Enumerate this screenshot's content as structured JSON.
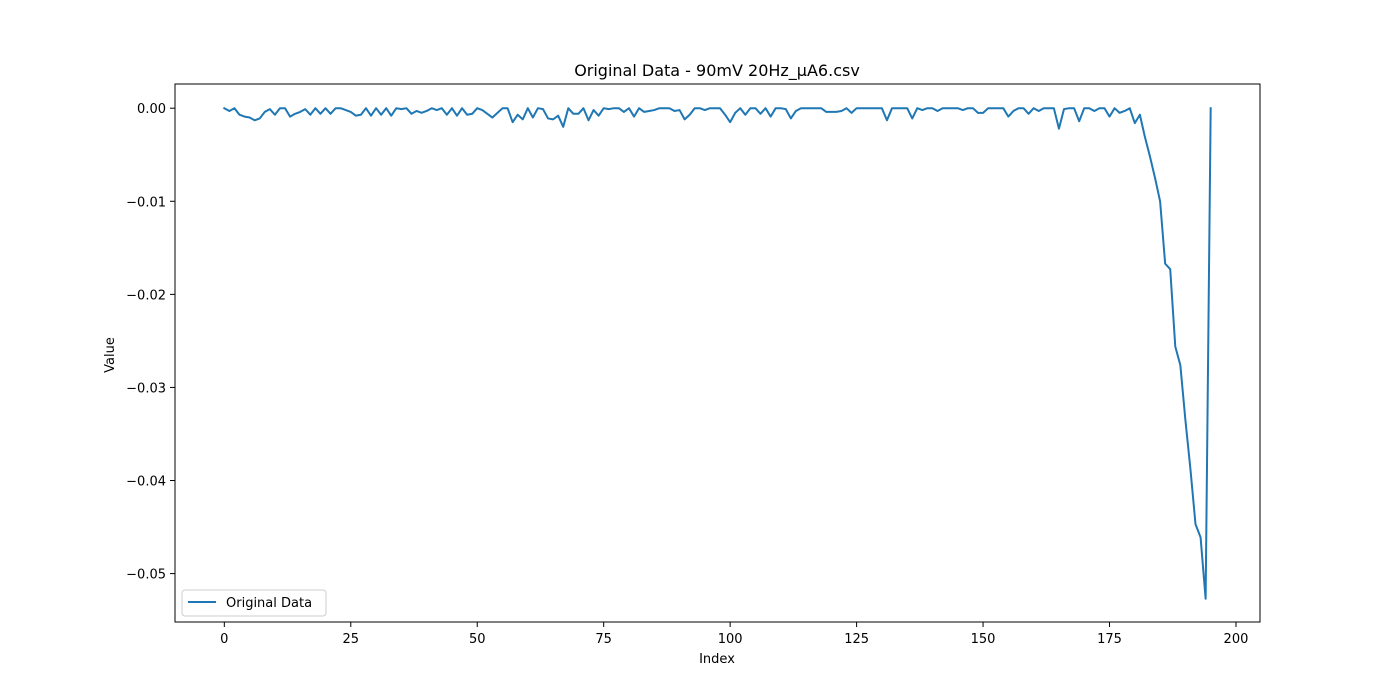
{
  "chart_data": {
    "type": "line",
    "title": "Original Data - 90mV 20Hz_µA6.csv",
    "xlabel": "Index",
    "ylabel": "Value",
    "xlim": [
      -9.75,
      204.75
    ],
    "ylim": [
      -0.0552,
      0.0026
    ],
    "xticks": [
      0,
      25,
      50,
      75,
      100,
      125,
      150,
      175,
      200
    ],
    "xtick_labels": [
      "0",
      "25",
      "50",
      "75",
      "100",
      "125",
      "150",
      "175",
      "200"
    ],
    "yticks": [
      0.0,
      -0.01,
      -0.02,
      -0.03,
      -0.04,
      -0.05
    ],
    "ytick_labels": [
      "0.00",
      "−0.01",
      "−0.02",
      "−0.03",
      "−0.04",
      "−0.05"
    ],
    "grid": false,
    "legend_position": "lower left",
    "series": [
      {
        "name": "Original Data",
        "color": "#1f77b4",
        "x": [
          0,
          1,
          2,
          3,
          4,
          5,
          6,
          7,
          8,
          9,
          10,
          11,
          12,
          13,
          14,
          15,
          16,
          17,
          18,
          19,
          20,
          21,
          22,
          23,
          24,
          25,
          26,
          27,
          28,
          29,
          30,
          31,
          32,
          33,
          34,
          35,
          36,
          37,
          38,
          39,
          40,
          41,
          42,
          43,
          44,
          45,
          46,
          47,
          48,
          49,
          50,
          51,
          52,
          53,
          54,
          55,
          56,
          57,
          58,
          59,
          60,
          61,
          62,
          63,
          64,
          65,
          66,
          67,
          68,
          69,
          70,
          71,
          72,
          73,
          74,
          75,
          76,
          77,
          78,
          79,
          80,
          81,
          82,
          83,
          84,
          85,
          86,
          87,
          88,
          89,
          90,
          91,
          92,
          93,
          94,
          95,
          96,
          97,
          98,
          99,
          100,
          101,
          102,
          103,
          104,
          105,
          106,
          107,
          108,
          109,
          110,
          111,
          112,
          113,
          114,
          115,
          116,
          117,
          118,
          119,
          120,
          121,
          122,
          123,
          124,
          125,
          126,
          127,
          128,
          129,
          130,
          131,
          132,
          133,
          134,
          135,
          136,
          137,
          138,
          139,
          140,
          141,
          142,
          143,
          144,
          145,
          146,
          147,
          148,
          149,
          150,
          151,
          152,
          153,
          154,
          155,
          156,
          157,
          158,
          159,
          160,
          161,
          162,
          163,
          164,
          165,
          166,
          167,
          168,
          169,
          170,
          171,
          172,
          173,
          174,
          175,
          176,
          177,
          178,
          179,
          180,
          181,
          182,
          183,
          184,
          185,
          186,
          187,
          188,
          189,
          190,
          191,
          192,
          193,
          194,
          195
        ],
        "y": [
          0.0,
          -0.0003,
          0.0,
          -0.0007,
          -0.0009,
          -0.001,
          -0.0013,
          -0.0011,
          -0.0004,
          -0.0001,
          -0.0007,
          0.0,
          0.0,
          -0.0009,
          -0.0006,
          -0.0004,
          -0.0001,
          -0.0007,
          0.0,
          -0.0006,
          0.0,
          -0.0006,
          0.0,
          0.0,
          -0.0002,
          -0.0004,
          -0.0008,
          -0.0007,
          0.0,
          -0.0008,
          0.0,
          -0.0007,
          0.0,
          -0.0008,
          0.0,
          -0.0001,
          0.0,
          -0.0006,
          -0.0003,
          -0.0005,
          -0.0003,
          0.0,
          -0.0002,
          0.0,
          -0.0007,
          0.0,
          -0.0008,
          0.0,
          -0.0007,
          -0.0006,
          0.0,
          -0.0002,
          -0.0006,
          -0.001,
          -0.0005,
          0.0,
          0.0,
          -0.0015,
          -0.0007,
          -0.0012,
          0.0,
          -0.001,
          0.0,
          -0.0001,
          -0.0011,
          -0.0012,
          -0.0008,
          -0.002,
          0.0,
          -0.0006,
          -0.0006,
          0.0,
          -0.0013,
          -0.0002,
          -0.0008,
          0.0,
          -0.0001,
          0.0,
          0.0,
          -0.0004,
          0.0,
          -0.0009,
          0.0,
          -0.0004,
          -0.0003,
          -0.0002,
          0.0,
          0.0,
          0.0,
          -0.0003,
          -0.0002,
          -0.0012,
          -0.0007,
          0.0,
          0.0,
          -0.0002,
          0.0,
          0.0,
          0.0,
          -0.0007,
          -0.0015,
          -0.0005,
          0.0,
          -0.0007,
          0.0,
          0.0,
          -0.0006,
          0.0,
          -0.0009,
          0.0,
          0.0,
          -0.0001,
          -0.0011,
          -0.0003,
          0.0,
          0.0,
          0.0,
          0.0,
          0.0,
          -0.0004,
          -0.0004,
          -0.0004,
          -0.0003,
          0.0,
          -0.0005,
          0.0,
          0.0,
          0.0,
          0.0,
          0.0,
          0.0,
          -0.0013,
          0.0,
          0.0,
          0.0,
          0.0,
          -0.0011,
          0.0,
          -0.0002,
          0.0,
          0.0,
          -0.0003,
          0.0,
          0.0,
          0.0,
          0.0,
          -0.0002,
          0.0,
          0.0,
          -0.0005,
          -0.0005,
          0.0,
          0.0,
          0.0,
          0.0,
          -0.0009,
          -0.0003,
          0.0,
          0.0,
          -0.0006,
          0.0,
          -0.0003,
          0.0,
          0.0,
          0.0,
          -0.0022,
          -0.0001,
          0.0,
          0.0,
          -0.0014,
          0.0,
          0.0,
          -0.0003,
          0.0,
          0.0,
          -0.0009,
          0.0,
          -0.0005,
          -0.0003,
          0.0,
          -0.0016,
          -0.0007,
          -0.0031,
          -0.0052,
          -0.0075,
          -0.01,
          -0.0167,
          -0.0173,
          -0.0256,
          -0.0276,
          -0.0335,
          -0.0388,
          -0.0447,
          -0.0461,
          -0.0527,
          0.0
        ]
      }
    ]
  }
}
